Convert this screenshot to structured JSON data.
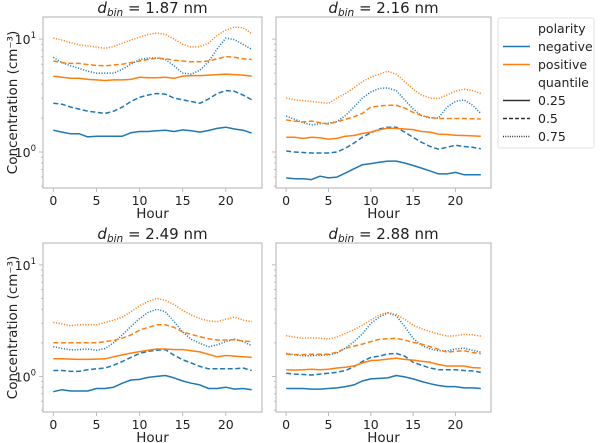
{
  "chart_data": {
    "type": "line",
    "layout": "2x2 grid, shared y-axis (log scale), shared x-axis",
    "xlabel": "Hour",
    "ylabel": "Concentration (cm⁻³)",
    "yscale": "log",
    "ylim": [
      0.48,
      15.7
    ],
    "xlim": [
      -1.2,
      24.2
    ],
    "x_ticks": [
      0,
      5,
      10,
      15,
      20
    ],
    "y_ticks": [
      {
        "value": 1,
        "label_base": "10",
        "label_exp": "0"
      },
      {
        "value": 10,
        "label_base": "10",
        "label_exp": "1"
      }
    ],
    "grid": false,
    "x": [
      0,
      1,
      2,
      3,
      4,
      5,
      6,
      7,
      8,
      9,
      10,
      11,
      12,
      13,
      14,
      15,
      16,
      17,
      18,
      19,
      20,
      21,
      22,
      23
    ],
    "legend": {
      "placement": "outside-right",
      "sections": [
        {
          "title": "polarity",
          "entries": [
            {
              "label": "negative",
              "color": "#1f77b4",
              "style": "solid"
            },
            {
              "label": "positive",
              "color": "#ff7f0e",
              "style": "solid"
            }
          ]
        },
        {
          "title": "quantile",
          "entries": [
            {
              "label": "0.25",
              "color": "#333333",
              "style": "solid"
            },
            {
              "label": "0.5",
              "color": "#333333",
              "style": "dashed"
            },
            {
              "label": "0.75",
              "color": "#333333",
              "style": "dotted"
            }
          ]
        }
      ]
    },
    "panels": [
      {
        "title_prefix": "d",
        "title_sub": "bin",
        "title_value": " =  1.87 nm",
        "series": [
          {
            "polarity": "negative",
            "quantile": "0.25",
            "values": [
              1.56,
              1.5,
              1.45,
              1.45,
              1.36,
              1.38,
              1.38,
              1.38,
              1.38,
              1.48,
              1.52,
              1.52,
              1.54,
              1.56,
              1.52,
              1.57,
              1.54,
              1.5,
              1.55,
              1.62,
              1.66,
              1.6,
              1.56,
              1.47
            ]
          },
          {
            "polarity": "negative",
            "quantile": "0.5",
            "values": [
              2.7,
              2.65,
              2.5,
              2.4,
              2.3,
              2.25,
              2.2,
              2.3,
              2.5,
              2.8,
              3.05,
              3.2,
              3.3,
              3.25,
              3.0,
              2.9,
              2.8,
              2.7,
              2.95,
              3.3,
              3.5,
              3.45,
              3.2,
              2.9
            ]
          },
          {
            "polarity": "negative",
            "quantile": "0.75",
            "values": [
              6.9,
              6.2,
              5.8,
              5.5,
              5.2,
              5.0,
              5.0,
              5.0,
              5.4,
              6.0,
              6.6,
              6.8,
              6.8,
              6.6,
              5.8,
              5.0,
              4.9,
              5.3,
              6.3,
              8.2,
              10.2,
              9.9,
              9.0,
              8.1
            ]
          },
          {
            "polarity": "positive",
            "quantile": "0.25",
            "values": [
              4.7,
              4.6,
              4.5,
              4.5,
              4.4,
              4.35,
              4.3,
              4.35,
              4.35,
              4.4,
              4.6,
              4.55,
              4.55,
              4.6,
              4.5,
              4.7,
              4.75,
              4.75,
              4.8,
              4.85,
              4.9,
              4.85,
              4.8,
              4.7
            ]
          },
          {
            "polarity": "positive",
            "quantile": "0.5",
            "values": [
              6.4,
              6.2,
              6.1,
              6.1,
              5.95,
              5.85,
              5.8,
              5.9,
              6.0,
              6.2,
              6.4,
              6.6,
              6.8,
              6.7,
              6.5,
              6.4,
              6.3,
              6.3,
              6.4,
              6.7,
              7.0,
              6.9,
              6.7,
              6.6
            ]
          },
          {
            "polarity": "positive",
            "quantile": "0.75",
            "values": [
              10.2,
              9.8,
              9.3,
              8.9,
              8.7,
              8.5,
              8.3,
              8.6,
              9.2,
              9.8,
              10.4,
              11.0,
              11.3,
              11.0,
              10.0,
              9.0,
              8.5,
              8.6,
              9.2,
              10.8,
              12.0,
              12.8,
              12.6,
              11.2
            ]
          }
        ]
      },
      {
        "title_prefix": "d",
        "title_sub": "bin",
        "title_value": " =  2.16 nm",
        "series": [
          {
            "polarity": "negative",
            "quantile": "0.25",
            "values": [
              0.59,
              0.58,
              0.58,
              0.57,
              0.61,
              0.59,
              0.6,
              0.65,
              0.71,
              0.77,
              0.79,
              0.81,
              0.83,
              0.83,
              0.8,
              0.76,
              0.72,
              0.68,
              0.64,
              0.64,
              0.66,
              0.63,
              0.63,
              0.63
            ]
          },
          {
            "polarity": "negative",
            "quantile": "0.5",
            "values": [
              1.02,
              1.0,
              0.99,
              0.98,
              0.98,
              0.98,
              1.0,
              1.08,
              1.2,
              1.35,
              1.48,
              1.6,
              1.66,
              1.66,
              1.5,
              1.35,
              1.22,
              1.12,
              1.06,
              1.1,
              1.15,
              1.12,
              1.1,
              1.07
            ]
          },
          {
            "polarity": "negative",
            "quantile": "0.75",
            "values": [
              2.08,
              1.95,
              1.82,
              1.74,
              1.78,
              1.8,
              1.86,
              2.1,
              2.5,
              3.0,
              3.4,
              3.65,
              3.7,
              3.5,
              2.9,
              2.4,
              2.1,
              2.0,
              2.0,
              2.5,
              2.8,
              2.9,
              2.6,
              2.2
            ]
          },
          {
            "polarity": "positive",
            "quantile": "0.25",
            "values": [
              1.35,
              1.35,
              1.32,
              1.35,
              1.34,
              1.3,
              1.32,
              1.38,
              1.4,
              1.46,
              1.5,
              1.57,
              1.63,
              1.62,
              1.6,
              1.58,
              1.52,
              1.5,
              1.44,
              1.43,
              1.41,
              1.4,
              1.39,
              1.38
            ]
          },
          {
            "polarity": "positive",
            "quantile": "0.5",
            "values": [
              1.92,
              1.88,
              1.85,
              1.88,
              1.82,
              1.77,
              1.85,
              1.95,
              2.05,
              2.2,
              2.5,
              2.55,
              2.6,
              2.6,
              2.45,
              2.25,
              2.1,
              2.02,
              1.98,
              1.98,
              1.98,
              1.98,
              1.97,
              1.96
            ]
          },
          {
            "polarity": "positive",
            "quantile": "0.75",
            "values": [
              3.0,
              2.9,
              2.85,
              2.8,
              2.75,
              2.7,
              3.0,
              3.3,
              3.7,
              4.2,
              4.6,
              4.9,
              5.2,
              4.9,
              4.2,
              3.6,
              3.2,
              3.0,
              2.97,
              3.2,
              3.45,
              3.6,
              3.5,
              3.3
            ]
          }
        ]
      },
      {
        "title_prefix": "d",
        "title_sub": "bin",
        "title_value": " =  2.49 nm",
        "series": [
          {
            "polarity": "negative",
            "quantile": "0.25",
            "values": [
              0.73,
              0.76,
              0.74,
              0.74,
              0.74,
              0.78,
              0.78,
              0.8,
              0.87,
              0.93,
              0.94,
              0.98,
              1.0,
              1.02,
              0.97,
              0.91,
              0.87,
              0.84,
              0.78,
              0.78,
              0.8,
              0.77,
              0.78,
              0.76
            ]
          },
          {
            "polarity": "negative",
            "quantile": "0.5",
            "values": [
              1.13,
              1.13,
              1.11,
              1.11,
              1.15,
              1.17,
              1.19,
              1.26,
              1.36,
              1.48,
              1.61,
              1.68,
              1.72,
              1.74,
              1.55,
              1.41,
              1.32,
              1.23,
              1.17,
              1.17,
              1.17,
              1.17,
              1.19,
              1.13
            ]
          },
          {
            "polarity": "negative",
            "quantile": "0.75",
            "values": [
              1.85,
              1.78,
              1.73,
              1.74,
              1.76,
              1.72,
              1.78,
              2.0,
              2.35,
              2.8,
              3.3,
              3.75,
              4.0,
              3.8,
              3.1,
              2.5,
              2.15,
              1.98,
              1.84,
              1.92,
              2.05,
              2.16,
              2.05,
              1.89
            ]
          },
          {
            "polarity": "positive",
            "quantile": "0.25",
            "values": [
              1.44,
              1.44,
              1.43,
              1.42,
              1.42,
              1.43,
              1.44,
              1.5,
              1.56,
              1.62,
              1.67,
              1.72,
              1.76,
              1.76,
              1.74,
              1.74,
              1.7,
              1.66,
              1.58,
              1.5,
              1.54,
              1.52,
              1.5,
              1.48
            ]
          },
          {
            "polarity": "positive",
            "quantile": "0.5",
            "values": [
              2.0,
              2.0,
              2.0,
              2.0,
              2.0,
              2.0,
              2.05,
              2.1,
              2.2,
              2.35,
              2.6,
              2.75,
              2.9,
              2.9,
              2.75,
              2.5,
              2.38,
              2.27,
              2.18,
              2.12,
              2.12,
              2.14,
              2.08,
              2.05
            ]
          },
          {
            "polarity": "positive",
            "quantile": "0.75",
            "values": [
              3.05,
              2.95,
              2.85,
              2.9,
              2.9,
              2.9,
              3.05,
              3.2,
              3.4,
              3.8,
              4.3,
              4.7,
              5.0,
              4.8,
              4.4,
              3.9,
              3.55,
              3.3,
              3.15,
              3.1,
              3.25,
              3.4,
              3.2,
              3.1
            ]
          }
        ]
      },
      {
        "title_prefix": "d",
        "title_sub": "bin",
        "title_value": " =  2.88 nm",
        "series": [
          {
            "polarity": "negative",
            "quantile": "0.25",
            "values": [
              0.78,
              0.78,
              0.78,
              0.77,
              0.77,
              0.78,
              0.79,
              0.81,
              0.84,
              0.91,
              0.95,
              0.96,
              0.97,
              1.02,
              0.99,
              0.95,
              0.9,
              0.86,
              0.83,
              0.81,
              0.81,
              0.79,
              0.79,
              0.78
            ]
          },
          {
            "polarity": "negative",
            "quantile": "0.5",
            "values": [
              1.07,
              1.05,
              1.04,
              1.03,
              1.05,
              1.07,
              1.09,
              1.13,
              1.22,
              1.36,
              1.48,
              1.52,
              1.59,
              1.61,
              1.52,
              1.34,
              1.26,
              1.19,
              1.15,
              1.15,
              1.15,
              1.13,
              1.12,
              1.09
            ]
          },
          {
            "polarity": "negative",
            "quantile": "0.75",
            "values": [
              1.61,
              1.56,
              1.53,
              1.53,
              1.55,
              1.56,
              1.62,
              1.79,
              2.05,
              2.4,
              2.98,
              3.4,
              3.7,
              3.5,
              2.8,
              2.19,
              1.9,
              1.76,
              1.7,
              1.69,
              1.76,
              1.79,
              1.72,
              1.65
            ]
          },
          {
            "polarity": "positive",
            "quantile": "0.25",
            "values": [
              1.15,
              1.14,
              1.15,
              1.16,
              1.15,
              1.16,
              1.19,
              1.21,
              1.24,
              1.32,
              1.39,
              1.4,
              1.43,
              1.46,
              1.42,
              1.4,
              1.37,
              1.34,
              1.28,
              1.24,
              1.24,
              1.24,
              1.2,
              1.19
            ]
          },
          {
            "polarity": "positive",
            "quantile": "0.5",
            "values": [
              1.58,
              1.57,
              1.57,
              1.58,
              1.58,
              1.58,
              1.65,
              1.79,
              1.87,
              1.95,
              2.05,
              2.15,
              2.18,
              2.19,
              2.12,
              2.02,
              1.95,
              1.85,
              1.75,
              1.65,
              1.68,
              1.7,
              1.64,
              1.6
            ]
          },
          {
            "polarity": "positive",
            "quantile": "0.75",
            "values": [
              2.32,
              2.25,
              2.2,
              2.22,
              2.2,
              2.16,
              2.25,
              2.43,
              2.62,
              2.88,
              3.2,
              3.55,
              3.74,
              3.6,
              3.25,
              2.88,
              2.68,
              2.52,
              2.4,
              2.3,
              2.32,
              2.38,
              2.36,
              2.3
            ]
          }
        ]
      }
    ]
  }
}
